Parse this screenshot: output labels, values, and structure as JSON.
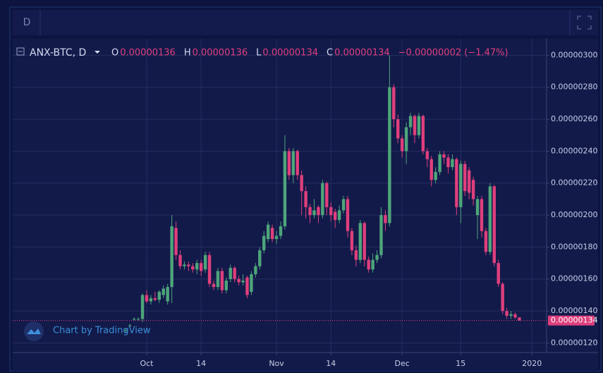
{
  "chart_data": {
    "type": "candlestick",
    "interval_button": "D",
    "symbol": "ANX-BTC, D",
    "ohlc_header": [
      {
        "key": "O",
        "value": 1.36e-06,
        "label": "0.00000136"
      },
      {
        "key": "H",
        "value": 1.36e-06,
        "label": "0.00000136"
      },
      {
        "key": "L",
        "value": 1.34e-06,
        "label": "0.00000134"
      },
      {
        "key": "C",
        "value": 1.34e-06,
        "label": "0.00000134"
      }
    ],
    "change": "−0.00000002 (−1.47%)",
    "watermark": "Chart by TradingView",
    "up_color": "#4ea57a",
    "down_color": "#de3f7c",
    "grid": true,
    "last_price": {
      "value": 1.34e-06,
      "label": "0.00000134"
    },
    "xlim": [
      -27,
      100.5
    ],
    "xticks": [
      {
        "value": 5,
        "label": "Oct"
      },
      {
        "value": 18,
        "label": "14"
      },
      {
        "value": 36,
        "label": "Nov"
      },
      {
        "value": 49,
        "label": "14"
      },
      {
        "value": 66,
        "label": "Dec"
      },
      {
        "value": 80,
        "label": "15"
      },
      {
        "value": 97,
        "label": "2020"
      }
    ],
    "ylim": [
      1.14e-06,
      3.09e-06
    ],
    "yticks": [
      {
        "value": 1.2e-06,
        "label": "0.00000120"
      },
      {
        "value": 1.4e-06,
        "label": "0.00000140"
      },
      {
        "value": 1.6e-06,
        "label": "0.00000160"
      },
      {
        "value": 1.8e-06,
        "label": "0.00000180"
      },
      {
        "value": 2e-06,
        "label": "0.00000200"
      },
      {
        "value": 2.2e-06,
        "label": "0.00000220"
      },
      {
        "value": 2.4e-06,
        "label": "0.00000240"
      },
      {
        "value": 2.6e-06,
        "label": "0.00000260"
      },
      {
        "value": 2.8e-06,
        "label": "0.00000280"
      },
      {
        "value": 3e-06,
        "label": "0.00000300"
      }
    ],
    "ohlc": [
      [
        1.28e-06,
        1.29e-06,
        1.26e-06,
        1.28e-06
      ],
      [
        1.31e-06,
        1.32e-06,
        1.3e-06,
        1.31e-06
      ],
      [
        1.35e-06,
        1.36e-06,
        1.34e-06,
        1.35e-06
      ],
      [
        1.35e-06,
        1.36e-06,
        1.34e-06,
        1.35e-06
      ],
      [
        1.35e-06,
        1.51e-06,
        1.33e-06,
        1.5e-06
      ],
      [
        1.5e-06,
        1.53e-06,
        1.45e-06,
        1.46e-06
      ],
      [
        1.46e-06,
        1.5e-06,
        1.44e-06,
        1.48e-06
      ],
      [
        1.48e-06,
        1.52e-06,
        1.46e-06,
        1.47e-06
      ],
      [
        1.47e-06,
        1.53e-06,
        1.45e-06,
        1.52e-06
      ],
      [
        1.5e-06,
        1.56e-06,
        1.48e-06,
        1.54e-06
      ],
      [
        1.46e-06,
        1.57e-06,
        1.44e-06,
        1.55e-06
      ],
      [
        1.55e-06,
        2e-06,
        1.45e-06,
        1.93e-06
      ],
      [
        1.92e-06,
        1.96e-06,
        1.72e-06,
        1.75e-06
      ],
      [
        1.75e-06,
        1.78e-06,
        1.66e-06,
        1.68e-06
      ],
      [
        1.68e-06,
        1.71e-06,
        1.66e-06,
        1.69e-06
      ],
      [
        1.69e-06,
        1.71e-06,
        1.65e-06,
        1.68e-06
      ],
      [
        1.68e-06,
        1.7e-06,
        1.64e-06,
        1.66e-06
      ],
      [
        1.66e-06,
        1.72e-06,
        1.63e-06,
        1.7e-06
      ],
      [
        1.7e-06,
        1.72e-06,
        1.62e-06,
        1.65e-06
      ],
      [
        1.66e-06,
        1.77e-06,
        1.64e-06,
        1.75e-06
      ],
      [
        1.75e-06,
        1.77e-06,
        1.55e-06,
        1.57e-06
      ],
      [
        1.57e-06,
        1.59e-06,
        1.53e-06,
        1.55e-06
      ],
      [
        1.55e-06,
        1.67e-06,
        1.53e-06,
        1.65e-06
      ],
      [
        1.65e-06,
        1.67e-06,
        1.51e-06,
        1.53e-06
      ],
      [
        1.53e-06,
        1.61e-06,
        1.51e-06,
        1.59e-06
      ],
      [
        1.6e-06,
        1.69e-06,
        1.58e-06,
        1.67e-06
      ],
      [
        1.67e-06,
        1.68e-06,
        1.58e-06,
        1.6e-06
      ],
      [
        1.6e-06,
        1.62e-06,
        1.56e-06,
        1.58e-06
      ],
      [
        1.58e-06,
        1.63e-06,
        1.56e-06,
        1.59e-06
      ],
      [
        1.61e-06,
        1.62e-06,
        1.48e-06,
        1.5e-06
      ],
      [
        1.52e-06,
        1.65e-06,
        1.5e-06,
        1.63e-06
      ],
      [
        1.63e-06,
        1.7e-06,
        1.61e-06,
        1.68e-06
      ],
      [
        1.68e-06,
        1.8e-06,
        1.66e-06,
        1.78e-06
      ],
      [
        1.78e-06,
        1.9e-06,
        1.76e-06,
        1.87e-06
      ],
      [
        1.85e-06,
        1.96e-06,
        1.83e-06,
        1.94e-06
      ],
      [
        1.92e-06,
        1.94e-06,
        1.83e-06,
        1.85e-06
      ],
      [
        1.85e-06,
        1.9e-06,
        1.82e-06,
        1.87e-06
      ],
      [
        1.87e-06,
        1.96e-06,
        1.85e-06,
        1.93e-06
      ],
      [
        1.93e-06,
        2.5e-06,
        1.91e-06,
        2.4e-06
      ],
      [
        2.4e-06,
        2.42e-06,
        2.22e-06,
        2.25e-06
      ],
      [
        2.25e-06,
        2.42e-06,
        2.2e-06,
        2.4e-06
      ],
      [
        2.4e-06,
        2.41e-06,
        2.22e-06,
        2.25e-06
      ],
      [
        2.25e-06,
        2.28e-06,
        2e-06,
        2.15e-06
      ],
      [
        2.15e-06,
        2.18e-06,
        1.98e-06,
        2.05e-06
      ],
      [
        2.05e-06,
        2.07e-06,
        1.95e-06,
        2e-06
      ],
      [
        2e-06,
        2.1e-06,
        1.98e-06,
        2.03e-06
      ],
      [
        2.05e-06,
        2.06e-06,
        1.95e-06,
        2e-06
      ],
      [
        2e-06,
        2.22e-06,
        1.98e-06,
        2.2e-06
      ],
      [
        2.2e-06,
        2.21e-06,
        2e-06,
        2.05e-06
      ],
      [
        2.05e-06,
        2.08e-06,
        1.96e-06,
        2e-06
      ],
      [
        2.02e-06,
        2.04e-06,
        1.92e-06,
        1.97e-06
      ],
      [
        1.97e-06,
        2.06e-06,
        1.95e-06,
        2.03e-06
      ],
      [
        2.03e-06,
        2.12e-06,
        2.01e-06,
        2.1e-06
      ],
      [
        2.1e-06,
        2.12e-06,
        1.86e-06,
        1.9e-06
      ],
      [
        1.9e-06,
        1.92e-06,
        1.75e-06,
        1.78e-06
      ],
      [
        1.78e-06,
        1.81e-06,
        1.68e-06,
        1.72e-06
      ],
      [
        1.72e-06,
        1.97e-06,
        1.7e-06,
        1.95e-06
      ],
      [
        1.95e-06,
        1.96e-06,
        1.68e-06,
        1.72e-06
      ],
      [
        1.72e-06,
        1.74e-06,
        1.64e-06,
        1.66e-06
      ],
      [
        1.66e-06,
        1.76e-06,
        1.64e-06,
        1.72e-06
      ],
      [
        1.72e-06,
        1.78e-06,
        1.7e-06,
        1.75e-06
      ],
      [
        1.75e-06,
        2.05e-06,
        1.73e-06,
        2e-06
      ],
      [
        2e-06,
        2.03e-06,
        1.9e-06,
        1.95e-06
      ],
      [
        1.95e-06,
        3e-06,
        1.93e-06,
        2.8e-06
      ],
      [
        2.8e-06,
        2.82e-06,
        2.55e-06,
        2.6e-06
      ],
      [
        2.6e-06,
        2.63e-06,
        2.45e-06,
        2.48e-06
      ],
      [
        2.48e-06,
        2.5e-06,
        2.36e-06,
        2.4e-06
      ],
      [
        2.4e-06,
        2.58e-06,
        2.32e-06,
        2.55e-06
      ],
      [
        2.55e-06,
        2.64e-06,
        2.5e-06,
        2.62e-06
      ],
      [
        2.62e-06,
        2.63e-06,
        2.45e-06,
        2.5e-06
      ],
      [
        2.5e-06,
        2.64e-06,
        2.48e-06,
        2.62e-06
      ],
      [
        2.62e-06,
        2.63e-06,
        2.38e-06,
        2.4e-06
      ],
      [
        2.4e-06,
        2.42e-06,
        2.3e-06,
        2.35e-06
      ],
      [
        2.35e-06,
        2.37e-06,
        2.18e-06,
        2.22e-06
      ],
      [
        2.22e-06,
        2.3e-06,
        2.2e-06,
        2.27e-06
      ],
      [
        2.27e-06,
        2.4e-06,
        2.25e-06,
        2.38e-06
      ],
      [
        2.38e-06,
        2.4e-06,
        2.32e-06,
        2.36e-06
      ],
      [
        2.36e-06,
        2.38e-06,
        2.26e-06,
        2.3e-06
      ],
      [
        2.3e-06,
        2.38e-06,
        2.28e-06,
        2.35e-06
      ],
      [
        2.35e-06,
        2.36e-06,
        2e-06,
        2.05e-06
      ],
      [
        2.05e-06,
        2.34e-06,
        1.95e-06,
        2.32e-06
      ],
      [
        2.32e-06,
        2.34e-06,
        2.12e-06,
        2.15e-06
      ],
      [
        2.28e-06,
        2.3e-06,
        2.1e-06,
        2.14e-06
      ],
      [
        2.22e-06,
        2.24e-06,
        2.06e-06,
        2.1e-06
      ],
      [
        2e-06,
        2.12e-06,
        1.85e-06,
        2.1e-06
      ],
      [
        2.1e-06,
        2.12e-06,
        1.86e-06,
        1.9e-06
      ],
      [
        1.9e-06,
        1.92e-06,
        1.75e-06,
        1.77e-06
      ],
      [
        1.77e-06,
        2.2e-06,
        1.75e-06,
        2.18e-06
      ],
      [
        2.18e-06,
        2.19e-06,
        1.68e-06,
        1.7e-06
      ],
      [
        1.7e-06,
        1.72e-06,
        1.55e-06,
        1.57e-06
      ],
      [
        1.57e-06,
        1.58e-06,
        1.38e-06,
        1.4e-06
      ],
      [
        1.4e-06,
        1.42e-06,
        1.35e-06,
        1.37e-06
      ],
      [
        1.37e-06,
        1.4e-06,
        1.35e-06,
        1.38e-06
      ],
      [
        1.38e-06,
        1.39e-06,
        1.35e-06,
        1.36e-06
      ],
      [
        1.36e-06,
        1.36e-06,
        1.34e-06,
        1.34e-06
      ]
    ]
  }
}
